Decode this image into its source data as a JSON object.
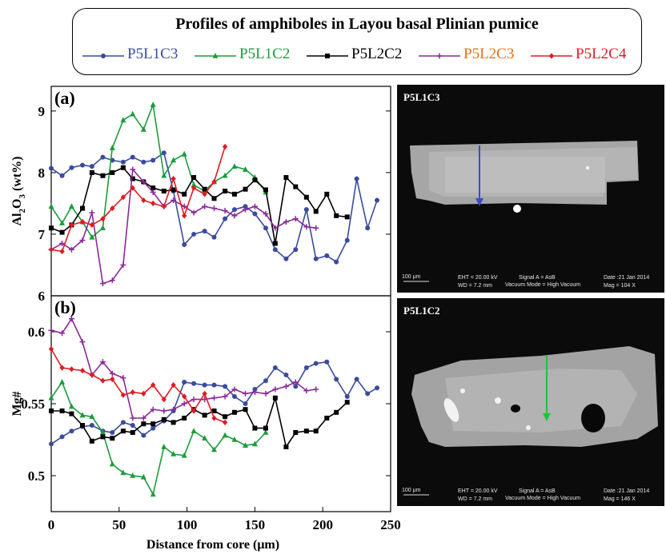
{
  "legend": {
    "title": "Profiles of amphiboles in Layou basal Plinian pumice",
    "items": [
      {
        "label": "P5L1C3",
        "color": "#3a4b9b",
        "marker": "circle"
      },
      {
        "label": "P5L1C2",
        "color": "#1e9b3c",
        "marker": "triangle"
      },
      {
        "label": "P5L2C2",
        "color": "#000000",
        "marker": "square"
      },
      {
        "label": "P5L2C3",
        "color": "#8a2a96",
        "marker": "plus",
        "label_color": "#e8701a"
      },
      {
        "label": "P5L2C4",
        "color": "#e01b24",
        "marker": "diamond"
      }
    ]
  },
  "chart_data": [
    {
      "type": "line",
      "panel": "(a)",
      "ylabel": "Al2O3 (wt%)",
      "xlim": [
        0,
        250
      ],
      "ylim": [
        6,
        9.4
      ],
      "yticks": [
        6,
        7,
        8,
        9
      ],
      "series": [
        {
          "name": "P5L1C3",
          "x": [
            0,
            8,
            15,
            23,
            30,
            38,
            45,
            53,
            60,
            68,
            75,
            83,
            90,
            98,
            105,
            113,
            120,
            128,
            135,
            143,
            150,
            158,
            165,
            173,
            180,
            188,
            195,
            203,
            210,
            218,
            225,
            233,
            240
          ],
          "y": [
            8.07,
            7.95,
            8.08,
            8.12,
            8.1,
            8.25,
            8.2,
            8.17,
            8.25,
            8.17,
            8.2,
            8.32,
            7.7,
            6.83,
            7.0,
            7.05,
            6.95,
            7.25,
            7.4,
            7.45,
            7.33,
            7.1,
            6.75,
            6.6,
            6.75,
            7.4,
            6.6,
            6.65,
            6.55,
            6.9,
            7.9,
            7.1,
            7.55
          ]
        },
        {
          "name": "P5L1C2",
          "x": [
            0,
            8,
            15,
            23,
            30,
            38,
            45,
            53,
            60,
            68,
            75,
            83,
            90,
            98,
            105,
            113,
            120,
            128,
            135,
            143,
            150,
            158
          ],
          "y": [
            7.45,
            7.18,
            7.45,
            7.2,
            6.95,
            7.1,
            8.4,
            8.85,
            8.95,
            8.7,
            9.1,
            7.95,
            8.2,
            8.3,
            7.8,
            7.7,
            7.85,
            7.95,
            8.1,
            8.05,
            7.92,
            7.68
          ]
        },
        {
          "name": "P5L2C2",
          "x": [
            0,
            8,
            15,
            23,
            30,
            38,
            45,
            53,
            60,
            68,
            75,
            83,
            90,
            98,
            105,
            113,
            120,
            128,
            135,
            143,
            150,
            158,
            165,
            173,
            180,
            188,
            195,
            203,
            210,
            218
          ],
          "y": [
            7.1,
            7.03,
            7.15,
            7.42,
            8.0,
            7.95,
            8.0,
            8.08,
            7.9,
            7.85,
            7.75,
            7.7,
            7.72,
            7.65,
            7.92,
            7.73,
            7.58,
            7.7,
            7.65,
            7.73,
            7.88,
            7.72,
            6.85,
            7.92,
            7.77,
            7.6,
            7.37,
            7.65,
            7.3,
            7.28
          ]
        },
        {
          "name": "P5L2C3",
          "x": [
            0,
            8,
            15,
            23,
            30,
            38,
            45,
            53,
            60,
            68,
            75,
            83,
            90,
            98,
            105,
            113,
            120,
            128,
            135,
            143,
            150,
            158,
            165,
            173,
            180,
            188,
            195
          ],
          "y": [
            6.75,
            6.85,
            6.75,
            6.9,
            7.35,
            6.2,
            6.25,
            6.5,
            8.05,
            7.85,
            7.68,
            7.45,
            7.55,
            7.45,
            7.35,
            7.45,
            7.42,
            7.38,
            7.3,
            7.4,
            7.45,
            7.33,
            7.1,
            7.2,
            7.25,
            7.12,
            7.1
          ]
        },
        {
          "name": "P5L2C4",
          "x": [
            0,
            8,
            15,
            23,
            30,
            38,
            45,
            53,
            60,
            68,
            75,
            83,
            90,
            98,
            105,
            113,
            120,
            128
          ],
          "y": [
            6.75,
            6.72,
            7.15,
            7.2,
            7.15,
            7.25,
            7.42,
            7.6,
            7.75,
            7.55,
            7.5,
            7.45,
            7.9,
            7.3,
            7.75,
            7.65,
            7.85,
            8.42
          ]
        }
      ]
    },
    {
      "type": "line",
      "panel": "(b)",
      "ylabel": "Mg#",
      "xlabel": "Distance from core (μm)",
      "xlim": [
        0,
        250
      ],
      "ylim": [
        0.475,
        0.625
      ],
      "xticks": [
        0,
        50,
        100,
        150,
        200,
        250
      ],
      "yticks": [
        0.5,
        0.55,
        0.6
      ],
      "series": [
        {
          "name": "P5L1C3",
          "x": [
            0,
            8,
            15,
            23,
            30,
            38,
            45,
            53,
            60,
            68,
            75,
            83,
            90,
            98,
            105,
            113,
            120,
            128,
            135,
            143,
            150,
            158,
            165,
            173,
            180,
            188,
            195,
            203,
            210,
            218,
            225,
            233,
            240
          ],
          "y": [
            0.522,
            0.527,
            0.531,
            0.534,
            0.535,
            0.531,
            0.53,
            0.537,
            0.535,
            0.528,
            0.533,
            0.538,
            0.545,
            0.565,
            0.564,
            0.563,
            0.563,
            0.562,
            0.555,
            0.55,
            0.56,
            0.566,
            0.575,
            0.57,
            0.562,
            0.575,
            0.578,
            0.579,
            0.567,
            0.555,
            0.567,
            0.557,
            0.561
          ]
        },
        {
          "name": "P5L1C2",
          "x": [
            0,
            8,
            15,
            23,
            30,
            38,
            45,
            53,
            60,
            68,
            75,
            83,
            90,
            98,
            105,
            113,
            120,
            128,
            135,
            143,
            150,
            158
          ],
          "y": [
            0.554,
            0.565,
            0.548,
            0.542,
            0.541,
            0.53,
            0.508,
            0.502,
            0.5,
            0.499,
            0.487,
            0.52,
            0.515,
            0.514,
            0.531,
            0.526,
            0.518,
            0.528,
            0.525,
            0.521,
            0.522,
            0.53
          ]
        },
        {
          "name": "P5L2C2",
          "x": [
            0,
            8,
            15,
            23,
            30,
            38,
            45,
            53,
            60,
            68,
            75,
            83,
            90,
            98,
            105,
            113,
            120,
            128,
            135,
            143,
            150,
            158,
            165,
            173,
            180,
            188,
            195,
            203,
            210,
            218
          ],
          "y": [
            0.545,
            0.545,
            0.543,
            0.535,
            0.524,
            0.527,
            0.526,
            0.531,
            0.53,
            0.536,
            0.536,
            0.539,
            0.537,
            0.54,
            0.546,
            0.542,
            0.545,
            0.541,
            0.544,
            0.546,
            0.533,
            0.533,
            0.554,
            0.52,
            0.53,
            0.531,
            0.531,
            0.54,
            0.544,
            0.551
          ]
        },
        {
          "name": "P5L2C3",
          "x": [
            0,
            8,
            15,
            23,
            30,
            38,
            45,
            53,
            60,
            68,
            75,
            83,
            90,
            98,
            105,
            113,
            120,
            128,
            135,
            143,
            150,
            158,
            165,
            173,
            180,
            188,
            195
          ],
          "y": [
            0.601,
            0.599,
            0.609,
            0.593,
            0.57,
            0.579,
            0.571,
            0.568,
            0.54,
            0.54,
            0.546,
            0.545,
            0.546,
            0.55,
            0.553,
            0.553,
            0.554,
            0.555,
            0.56,
            0.557,
            0.558,
            0.557,
            0.56,
            0.562,
            0.565,
            0.559,
            0.56
          ]
        },
        {
          "name": "P5L2C4",
          "x": [
            0,
            8,
            15,
            23,
            30,
            38,
            45,
            53,
            60,
            68,
            75,
            83,
            90,
            98,
            105,
            113,
            120,
            128
          ],
          "y": [
            0.588,
            0.575,
            0.574,
            0.573,
            0.57,
            0.566,
            0.567,
            0.556,
            0.558,
            0.557,
            0.563,
            0.553,
            0.563,
            0.555,
            0.545,
            0.557,
            0.54,
            0.537
          ]
        }
      ]
    }
  ],
  "images": [
    {
      "label": "P5L1C3",
      "scale": "100 μm",
      "eht": "EHT = 20.00 kV",
      "wd": "WD =  7.2 mm",
      "signal": "Signal A = AsB",
      "vacuum": "Vacuum Mode = High Vacuum",
      "date": "Date :21 Jan 2014",
      "mag": "Mag =   104 X",
      "arrow_color": "#3a4bd0"
    },
    {
      "label": "P5L1C2",
      "scale": "100 μm",
      "eht": "EHT = 20.00 kV",
      "wd": "WD =  7.2 mm",
      "signal": "Signal A = AsB",
      "vacuum": "Vacuum Mode = High Vacuum",
      "date": "Date :21 Jan 2014",
      "mag": "Mag =   146 X",
      "arrow_color": "#1ec43c"
    }
  ]
}
